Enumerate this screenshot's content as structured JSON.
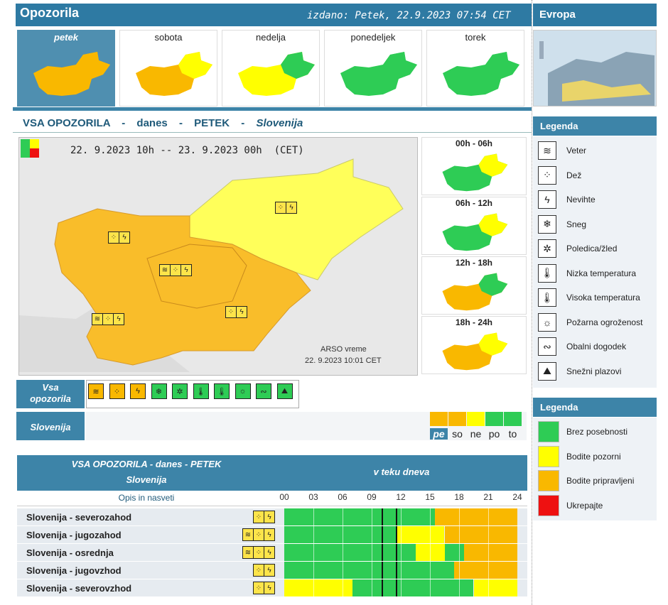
{
  "header": {
    "title": "Opozorila",
    "issued": "izdano: Petek, 22.9.2023 07:54 CET",
    "europe_title": "Evropa"
  },
  "days": [
    {
      "label": "petek",
      "selected": true
    },
    {
      "label": "sobota",
      "selected": false
    },
    {
      "label": "nedelja",
      "selected": false
    },
    {
      "label": "ponedeljek",
      "selected": false
    },
    {
      "label": "torek",
      "selected": false
    }
  ],
  "main": {
    "heading_a": "VSA OPOZORILA",
    "sep": "-",
    "heading_b": "danes",
    "heading_c": "PETEK",
    "heading_d": "Slovenija",
    "period": "22. 9.2023 10h -- 23. 9.2023 00h  (CET)",
    "credit_1": "ARSO vreme",
    "credit_2": "22. 9.2023  10:01 CET"
  },
  "timeslots": [
    "00h - 06h",
    "06h - 12h",
    "12h - 18h",
    "18h - 24h"
  ],
  "filters": {
    "all_label_1": "Vsa",
    "all_label_2": "opozorila",
    "region_label": "Slovenija",
    "day_labels": [
      "pe",
      "so",
      "ne",
      "po",
      "to"
    ],
    "day_colors": [
      "#f9b800",
      "#f9b800",
      "#ffff00",
      "#2ecc55",
      "#2ecc55"
    ]
  },
  "legend_types": {
    "title": "Legenda",
    "items": [
      {
        "label": "Veter",
        "icon": "wind-icon",
        "glyph": "≋"
      },
      {
        "label": "Dež",
        "icon": "rain-icon",
        "glyph": "⁘"
      },
      {
        "label": "Nevihte",
        "icon": "thunderstorm-icon",
        "glyph": "ϟ"
      },
      {
        "label": "Sneg",
        "icon": "snow-icon",
        "glyph": "❄"
      },
      {
        "label": "Poledica/žled",
        "icon": "ice-icon",
        "glyph": "✲"
      },
      {
        "label": "Nizka temperatura",
        "icon": "low-temperature-icon",
        "glyph": "🌡"
      },
      {
        "label": "Visoka temperatura",
        "icon": "high-temperature-icon",
        "glyph": "🌡"
      },
      {
        "label": "Požarna ogroženost",
        "icon": "fire-icon",
        "glyph": "☼"
      },
      {
        "label": "Obalni dogodek",
        "icon": "coastal-icon",
        "glyph": "∾"
      },
      {
        "label": "Snežni plazovi",
        "icon": "avalanche-icon",
        "glyph": "⛰"
      }
    ]
  },
  "legend_levels": {
    "title": "Legenda",
    "items": [
      {
        "label": "Brez posebnosti",
        "color": "#2ecc55"
      },
      {
        "label": "Bodite pozorni",
        "color": "#ffff00"
      },
      {
        "label": "Bodite pripravljeni",
        "color": "#f9b800"
      },
      {
        "label": "Ukrepajte",
        "color": "#ee1111"
      }
    ]
  },
  "table": {
    "head_1": "VSA OPOZORILA - danes - PETEK",
    "head_2": "Slovenija",
    "head_right": "v teku dneva",
    "sub": "Opis in nasveti",
    "hours": [
      "00",
      "03",
      "06",
      "09",
      "12",
      "15",
      "18",
      "21",
      "24"
    ],
    "rows": [
      {
        "name": "Slovenija - severozahod",
        "icons": [
          "⁘",
          "ϟ"
        ],
        "segments": [
          [
            0,
            15.5,
            "#2ecc55"
          ],
          [
            15.5,
            24,
            "#f9b800"
          ]
        ]
      },
      {
        "name": "Slovenija - jugozahod",
        "icons": [
          "≋",
          "⁘",
          "ϟ"
        ],
        "segments": [
          [
            0,
            11.5,
            "#2ecc55"
          ],
          [
            11.5,
            16.5,
            "#ffff00"
          ],
          [
            16.5,
            24,
            "#f9b800"
          ]
        ]
      },
      {
        "name": "Slovenija - osrednja",
        "icons": [
          "≋",
          "⁘",
          "ϟ"
        ],
        "segments": [
          [
            0,
            13.5,
            "#2ecc55"
          ],
          [
            13.5,
            16.5,
            "#ffff00"
          ],
          [
            16.5,
            18.5,
            "#2ecc55"
          ],
          [
            18.5,
            24,
            "#f9b800"
          ]
        ]
      },
      {
        "name": "Slovenija - jugovzhod",
        "icons": [
          "⁘",
          "ϟ"
        ],
        "segments": [
          [
            0,
            17.5,
            "#2ecc55"
          ],
          [
            17.5,
            24,
            "#f9b800"
          ]
        ]
      },
      {
        "name": "Slovenija - severovzhod",
        "icons": [
          "⁘",
          "ϟ"
        ],
        "segments": [
          [
            0,
            7,
            "#ffff00"
          ],
          [
            7,
            19.5,
            "#2ecc55"
          ],
          [
            19.5,
            24,
            "#ffff00"
          ]
        ]
      }
    ]
  }
}
